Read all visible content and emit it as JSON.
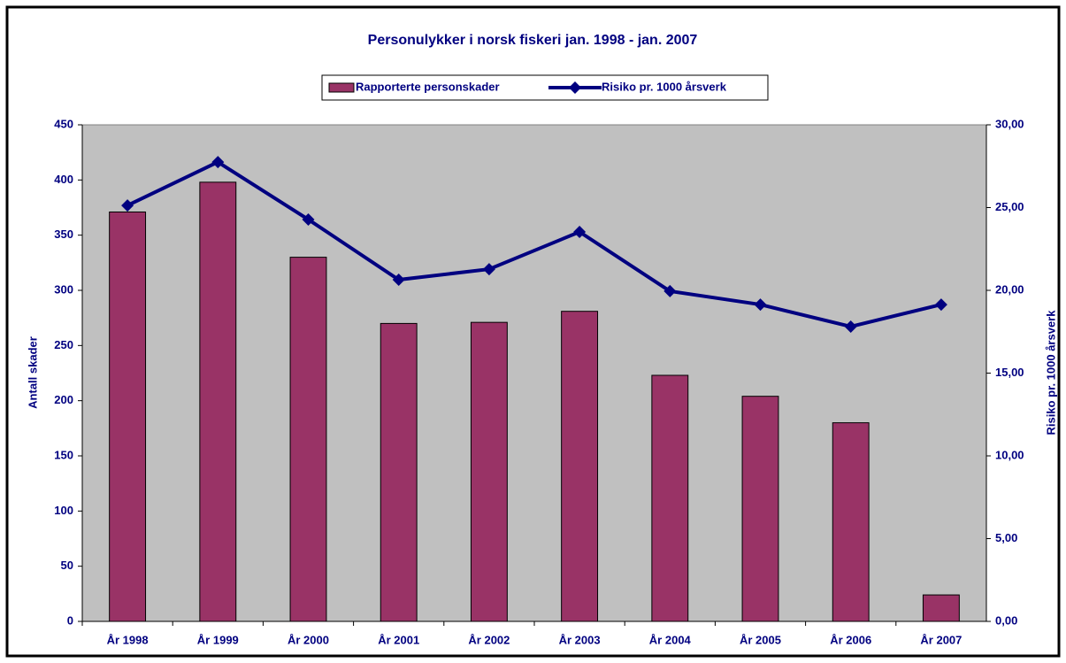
{
  "chart_data": {
    "type": "bar_line",
    "title": "Personulykker i norsk fiskeri jan. 1998 - jan. 2007",
    "categories": [
      "År 1998",
      "År 1999",
      "År 2000",
      "År 2001",
      "År 2002",
      "År 2003",
      "År 2004",
      "År 2005",
      "År 2006",
      "År 2007"
    ],
    "series": [
      {
        "name": "Rapporterte personskader",
        "type": "bar",
        "color": "#993366",
        "values": [
          371,
          398,
          330,
          270,
          271,
          281,
          223,
          204,
          180,
          24
        ]
      },
      {
        "name": "Risiko pr. 1000 årsverk",
        "type": "line",
        "axis": "y2",
        "color": "#000080",
        "values": [
          25.13,
          27.75,
          24.28,
          20.64,
          21.28,
          23.53,
          19.95,
          19.14,
          17.81,
          19.14
        ]
      }
    ],
    "ylabel": "Antall skader",
    "y2label": "Risiko pr. 1000 årsverk",
    "ylim": [
      0,
      450
    ],
    "yticks": [
      0,
      50,
      100,
      150,
      200,
      250,
      300,
      350,
      400,
      450
    ],
    "y2lim": [
      0,
      30
    ],
    "y2ticks": [
      {
        "value": 0,
        "label": "0,00"
      },
      {
        "value": 5,
        "label": "5,00"
      },
      {
        "value": 10,
        "label": "10,00"
      },
      {
        "value": 15,
        "label": "15,00"
      },
      {
        "value": 20,
        "label": "20,00"
      },
      {
        "value": 25,
        "label": "25,00"
      },
      {
        "value": 30,
        "label": "30,00"
      }
    ],
    "grid": false,
    "legend": "top"
  }
}
